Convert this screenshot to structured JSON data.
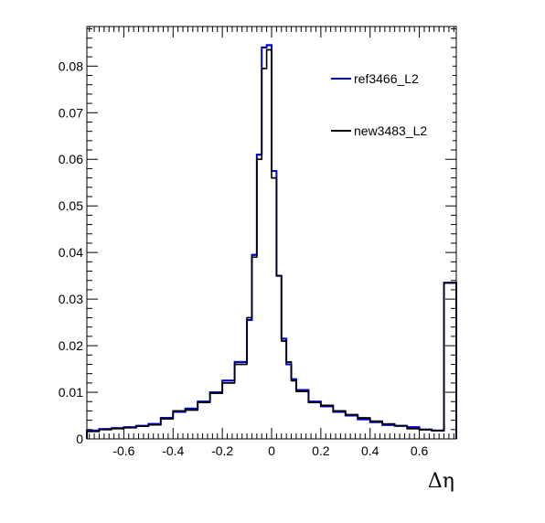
{
  "chart_data": {
    "type": "histogram",
    "title": "",
    "xlabel": "Δη",
    "ylabel": "",
    "xlim": [
      -0.75,
      0.75
    ],
    "ylim": [
      0,
      0.0885
    ],
    "grid": false,
    "legend_placement": "top-right",
    "x_ticks": [
      -0.6,
      -0.4,
      -0.2,
      0,
      0.2,
      0.4,
      0.6
    ],
    "x_tick_labels": [
      "-0.6",
      "-0.4",
      "-0.2",
      "0",
      "0.2",
      "0.4",
      "0.6"
    ],
    "y_ticks": [
      0,
      0.01,
      0.02,
      0.03,
      0.04,
      0.05,
      0.06,
      0.07,
      0.08
    ],
    "y_tick_labels": [
      "0",
      "0.01",
      "0.02",
      "0.03",
      "0.04",
      "0.05",
      "0.06",
      "0.07",
      "0.08"
    ],
    "bin_edges": [
      -0.75,
      -0.7,
      -0.65,
      -0.6,
      -0.55,
      -0.5,
      -0.45,
      -0.4,
      -0.35,
      -0.3,
      -0.25,
      -0.2,
      -0.15,
      -0.1,
      -0.08,
      -0.06,
      -0.04,
      -0.02,
      0,
      0.02,
      0.04,
      0.06,
      0.08,
      0.1,
      0.15,
      0.2,
      0.25,
      0.3,
      0.35,
      0.4,
      0.45,
      0.5,
      0.55,
      0.6,
      0.65,
      0.7,
      0.75
    ],
    "series": [
      {
        "name": "ref3466_L2",
        "color": "#0000cc",
        "values": [
          0.0018,
          0.0021,
          0.0023,
          0.0025,
          0.0028,
          0.0032,
          0.0045,
          0.0058,
          0.0065,
          0.008,
          0.01,
          0.0125,
          0.0165,
          0.0255,
          0.0395,
          0.061,
          0.084,
          0.0845,
          0.0575,
          0.035,
          0.0215,
          0.016,
          0.0128,
          0.0105,
          0.008,
          0.007,
          0.0058,
          0.005,
          0.0042,
          0.0036,
          0.003,
          0.0028,
          0.0025,
          0.002,
          0.0018,
          0.0335
        ]
      },
      {
        "name": "new3483_L2",
        "color": "#000000",
        "values": [
          0.0016,
          0.002,
          0.0022,
          0.0024,
          0.0027,
          0.003,
          0.0043,
          0.006,
          0.0062,
          0.0078,
          0.0098,
          0.012,
          0.016,
          0.026,
          0.039,
          0.06,
          0.0795,
          0.0835,
          0.056,
          0.035,
          0.021,
          0.0165,
          0.0125,
          0.0102,
          0.0078,
          0.0072,
          0.006,
          0.0052,
          0.0045,
          0.0038,
          0.0032,
          0.0028,
          0.0022,
          0.002,
          0.0018,
          0.0335
        ]
      }
    ]
  }
}
